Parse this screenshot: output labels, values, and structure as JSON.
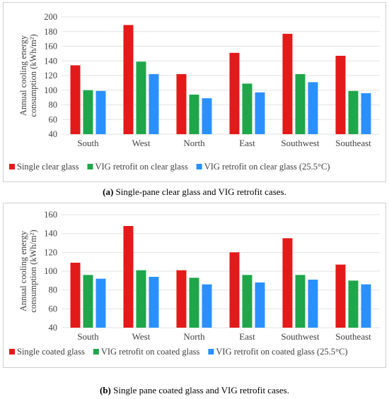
{
  "chart_data": [
    {
      "type": "bar",
      "categories": [
        "South",
        "West",
        "North",
        "East",
        "Southwest",
        "Southeast"
      ],
      "series": [
        {
          "name": "Single clear glass",
          "color": "#e31a1a",
          "values": [
            134,
            189,
            122,
            151,
            177,
            147
          ]
        },
        {
          "name": "VIG retrofit on clear glass",
          "color": "#1fa64a",
          "values": [
            100,
            139,
            94,
            109,
            122,
            99
          ]
        },
        {
          "name": "VIG retrofit on clear glass (25.5°C)",
          "color": "#2b90ff",
          "values": [
            99,
            122,
            89,
            97,
            111,
            96
          ]
        }
      ],
      "ylabel": "Annual cooling energy consumption (kWh/m²)",
      "ylim": [
        40,
        200
      ],
      "yticks": [
        40,
        60,
        80,
        100,
        120,
        140,
        160,
        180,
        200
      ],
      "grid": true,
      "legend": "bottom"
    },
    {
      "type": "bar",
      "categories": [
        "South",
        "West",
        "North",
        "East",
        "Southwest",
        "Southeast"
      ],
      "series": [
        {
          "name": "Single coated glass",
          "color": "#e31a1a",
          "values": [
            109,
            148,
            101,
            120,
            135,
            107
          ]
        },
        {
          "name": "VIG retrofit on coated glass",
          "color": "#1fa64a",
          "values": [
            96,
            101,
            93,
            96,
            96,
            90
          ]
        },
        {
          "name": "VIG retrofit on coated glass (25.5°C)",
          "color": "#2b90ff",
          "values": [
            92,
            94,
            86,
            88,
            91,
            86
          ]
        }
      ],
      "ylabel": "Annual cooling energy consumption (kWh/m²)",
      "ylim": [
        40,
        160
      ],
      "yticks": [
        40,
        60,
        80,
        100,
        120,
        140,
        160
      ],
      "grid": true,
      "legend": "bottom"
    }
  ],
  "captions": {
    "a_label": "(a)",
    "a_text": " Single-pane clear glass and VIG retrofit cases.",
    "b_label": "(b)",
    "b_text": " Single pane coated glass and VIG retrofit cases."
  }
}
